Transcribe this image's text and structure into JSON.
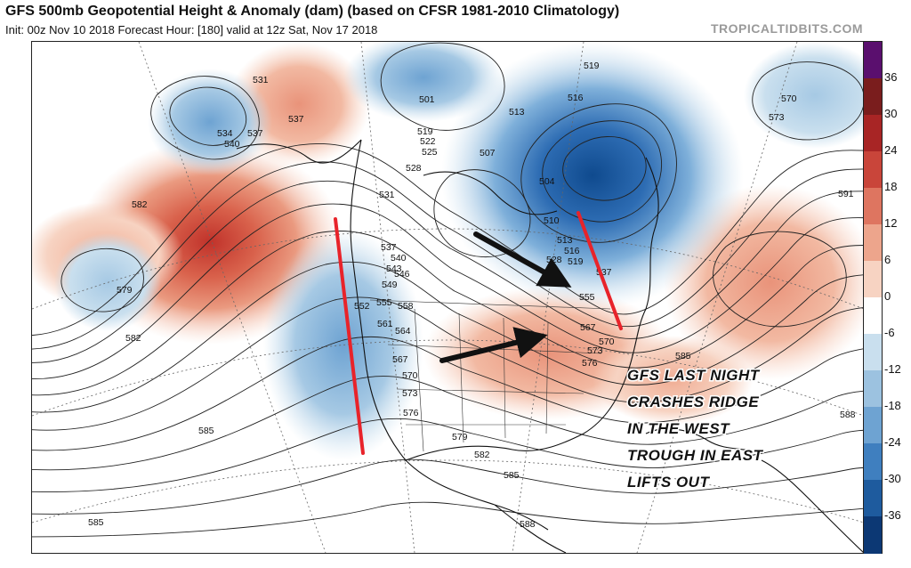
{
  "header": {
    "title": "GFS 500mb Geopotential Height & Anomaly (dam) (based on CFSR 1981-2010 Climatology)",
    "subtitle": "Init: 00z Nov 10 2018   Forecast Hour: [180]   valid at 12z Sat, Nov 17 2018",
    "brand": "TROPICALTIDBITS.COM"
  },
  "colorbar": {
    "labels": [
      "36",
      "30",
      "24",
      "18",
      "12",
      "6",
      "0",
      "-6",
      "-12",
      "-18",
      "-24",
      "-30",
      "-36"
    ],
    "colors": [
      "#5a0f6e",
      "#7a1d1d",
      "#a82525",
      "#c9453a",
      "#de7560",
      "#eda58c",
      "#f7d3c2",
      "#ffffff",
      "#c9dfee",
      "#9cc2e0",
      "#6ea3d2",
      "#3f7fbf",
      "#1e5b9e",
      "#0c3874"
    ]
  },
  "map": {
    "contour_labels": [
      {
        "text": "531"
      },
      {
        "text": "537"
      },
      {
        "text": "534"
      },
      {
        "text": "540"
      },
      {
        "text": "537"
      },
      {
        "text": "582"
      },
      {
        "text": "579"
      },
      {
        "text": "582"
      },
      {
        "text": "585"
      },
      {
        "text": "585"
      },
      {
        "text": "501"
      },
      {
        "text": "519"
      },
      {
        "text": "522"
      },
      {
        "text": "525"
      },
      {
        "text": "528"
      },
      {
        "text": "531"
      },
      {
        "text": "507"
      },
      {
        "text": "504"
      },
      {
        "text": "510"
      },
      {
        "text": "513"
      },
      {
        "text": "516"
      },
      {
        "text": "519"
      },
      {
        "text": "513"
      },
      {
        "text": "528"
      },
      {
        "text": "537"
      },
      {
        "text": "540"
      },
      {
        "text": "543"
      },
      {
        "text": "546"
      },
      {
        "text": "549"
      },
      {
        "text": "552"
      },
      {
        "text": "555"
      },
      {
        "text": "558"
      },
      {
        "text": "561"
      },
      {
        "text": "564"
      },
      {
        "text": "567"
      },
      {
        "text": "570"
      },
      {
        "text": "573"
      },
      {
        "text": "576"
      },
      {
        "text": "579"
      },
      {
        "text": "582"
      },
      {
        "text": "585"
      },
      {
        "text": "588"
      },
      {
        "text": "555"
      },
      {
        "text": "567"
      },
      {
        "text": "570"
      },
      {
        "text": "573"
      },
      {
        "text": "576"
      },
      {
        "text": "585"
      },
      {
        "text": "588"
      },
      {
        "text": "591"
      },
      {
        "text": "570"
      },
      {
        "text": "573"
      },
      {
        "text": "519"
      },
      {
        "text": "516"
      },
      {
        "text": "537"
      }
    ],
    "annotation": [
      "GFS LAST NIGHT",
      "CRASHES RIDGE",
      "IN THE WEST",
      "TROUGH IN EAST",
      "LIFTS OUT"
    ],
    "colors": {
      "ridge_marker": "#e8232a",
      "flow_arrow": "#111111"
    }
  }
}
